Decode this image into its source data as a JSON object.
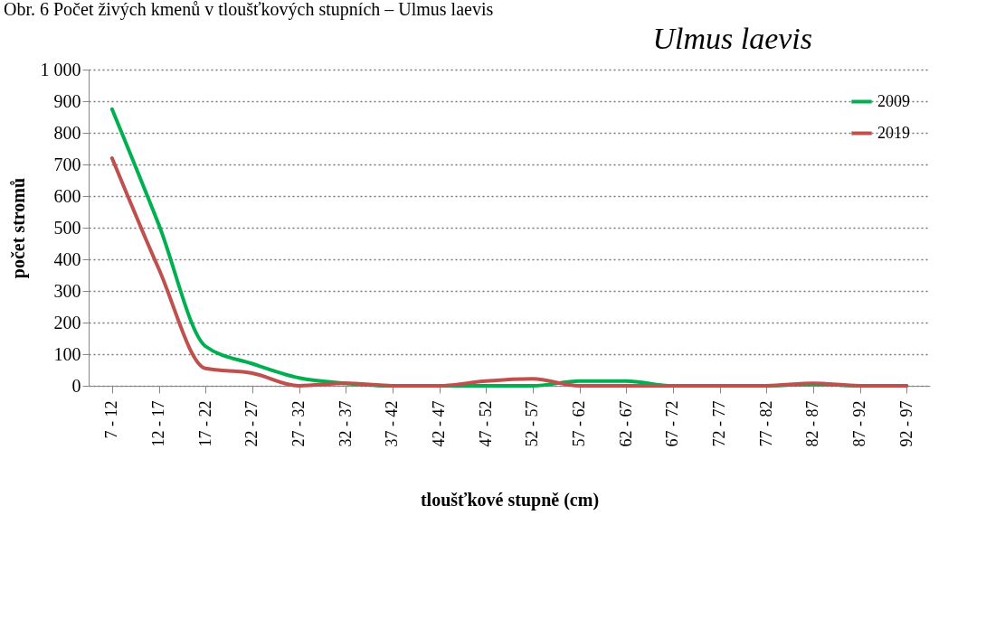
{
  "chart_data": {
    "type": "line",
    "title": "Ulmus laevis",
    "xlabel": "tloušťkové stupně (cm)",
    "ylabel": "počet stromů",
    "annotations": [
      "Obr. 6 Počet živých kmenů v tloušťkových stupních – Ulmus laevis"
    ],
    "categories": [
      "7 - 12",
      "12 - 17",
      "17 - 22",
      "22 - 27",
      "27 - 32",
      "32 - 37",
      "37 - 42",
      "42 - 47",
      "47 - 52",
      "52 - 57",
      "57 - 62",
      "62 - 67",
      "67 - 72",
      "72 - 77",
      "77 - 82",
      "82 - 87",
      "87 - 92",
      "92 - 97"
    ],
    "series": [
      {
        "name": "2009",
        "color": "#00b050",
        "values": [
          875,
          510,
          125,
          70,
          25,
          8,
          0,
          0,
          0,
          0,
          15,
          15,
          0,
          0,
          0,
          5,
          0,
          0
        ]
      },
      {
        "name": "2019",
        "color": "#c0504d",
        "values": [
          720,
          370,
          55,
          40,
          0,
          8,
          0,
          0,
          15,
          22,
          0,
          0,
          0,
          0,
          0,
          8,
          0,
          0
        ]
      }
    ],
    "ylim": [
      0,
      1000
    ],
    "yticks": [
      0,
      100,
      200,
      300,
      400,
      500,
      600,
      700,
      800,
      900,
      {
        "value": 1000,
        "label": "1 000"
      }
    ],
    "grid": "y",
    "legend": "top right",
    "marker": "none",
    "line_style": "solid"
  }
}
